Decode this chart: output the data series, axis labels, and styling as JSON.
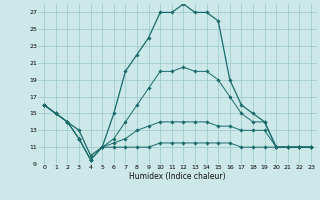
{
  "title": "",
  "xlabel": "Humidex (Indice chaleur)",
  "bg_color": "#cde8e8",
  "grid_color": "#a0cccc",
  "line_color": "#1a6b6b",
  "hours": [
    0,
    1,
    2,
    3,
    4,
    5,
    6,
    7,
    8,
    9,
    10,
    11,
    12,
    13,
    14,
    15,
    16,
    17,
    18,
    19,
    20,
    21,
    22,
    23
  ],
  "curve_main": [
    16,
    15,
    14,
    13,
    10,
    11,
    15,
    20,
    22,
    24,
    27,
    27,
    28,
    27,
    27,
    26,
    19,
    16,
    15,
    14,
    11,
    11,
    11,
    11
  ],
  "curve_upper": [
    16,
    15,
    14,
    12,
    9.5,
    11,
    12,
    14,
    16,
    18,
    20,
    20,
    20.5,
    20,
    20,
    19,
    17,
    15,
    14,
    14,
    11,
    11,
    11,
    11
  ],
  "curve_mid": [
    16,
    15,
    14,
    12,
    9.5,
    11,
    11.5,
    12,
    13,
    13.5,
    14,
    14,
    14,
    14,
    14,
    13.5,
    13.5,
    13,
    13,
    13,
    11,
    11,
    11,
    11
  ],
  "curve_low": [
    16,
    15,
    14,
    12,
    9.5,
    11,
    11,
    11,
    11,
    11,
    11.5,
    11.5,
    11.5,
    11.5,
    11.5,
    11.5,
    11.5,
    11,
    11,
    11,
    11,
    11,
    11,
    11
  ],
  "ylim": [
    9,
    28
  ],
  "yticks": [
    9,
    11,
    13,
    15,
    17,
    19,
    21,
    23,
    25,
    27
  ],
  "xlim": [
    -0.5,
    23.5
  ],
  "xticks": [
    0,
    1,
    2,
    3,
    4,
    5,
    6,
    7,
    8,
    9,
    10,
    11,
    12,
    13,
    14,
    15,
    16,
    17,
    18,
    19,
    20,
    21,
    22,
    23
  ]
}
